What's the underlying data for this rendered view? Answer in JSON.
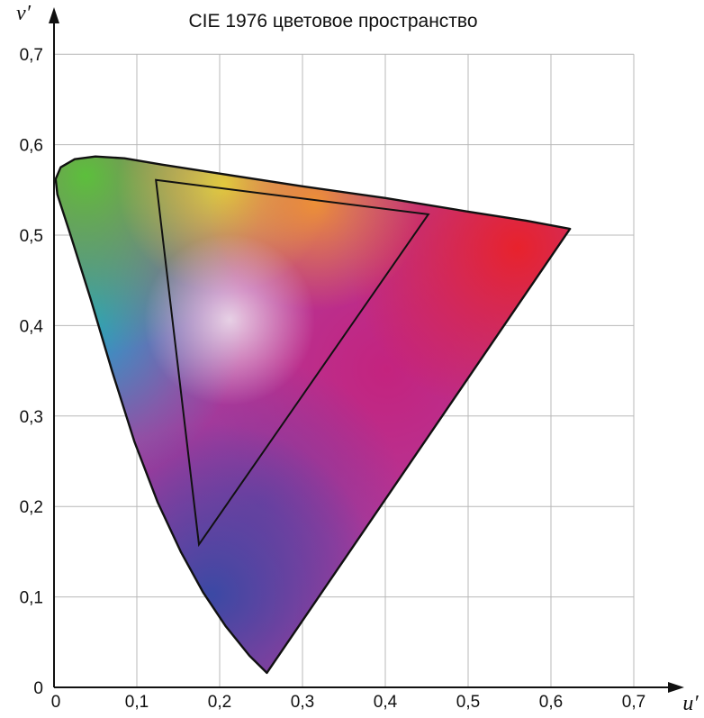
{
  "chart_data": {
    "type": "scatter",
    "title": "CIE 1976 цветовое пространство",
    "xlabel": "u′",
    "ylabel": "v′",
    "xlim": [
      0,
      0.7
    ],
    "ylim": [
      0,
      0.7
    ],
    "x_ticks": [
      {
        "value": 0,
        "label": "0"
      },
      {
        "value": 0.1,
        "label": "0,1"
      },
      {
        "value": 0.2,
        "label": "0,2"
      },
      {
        "value": 0.3,
        "label": "0,3"
      },
      {
        "value": 0.4,
        "label": "0,4"
      },
      {
        "value": 0.5,
        "label": "0,5"
      },
      {
        "value": 0.6,
        "label": "0,6"
      },
      {
        "value": 0.7,
        "label": "0,7"
      }
    ],
    "y_ticks": [
      {
        "value": 0,
        "label": "0"
      },
      {
        "value": 0.1,
        "label": "0,1"
      },
      {
        "value": 0.2,
        "label": "0,2"
      },
      {
        "value": 0.3,
        "label": "0,3"
      },
      {
        "value": 0.4,
        "label": "0,4"
      },
      {
        "value": 0.5,
        "label": "0,5"
      },
      {
        "value": 0.6,
        "label": "0,6"
      },
      {
        "value": 0.7,
        "label": "0,7"
      }
    ],
    "grid": true,
    "series": [
      {
        "kind": "spectral-locus",
        "points": [
          [
            0.257,
            0.016
          ],
          [
            0.236,
            0.035
          ],
          [
            0.207,
            0.068
          ],
          [
            0.18,
            0.105
          ],
          [
            0.153,
            0.15
          ],
          [
            0.125,
            0.205
          ],
          [
            0.097,
            0.272
          ],
          [
            0.07,
            0.35
          ],
          [
            0.044,
            0.43
          ],
          [
            0.02,
            0.5
          ],
          [
            0.004,
            0.545
          ],
          [
            0.002,
            0.562
          ],
          [
            0.008,
            0.575
          ],
          [
            0.025,
            0.584
          ],
          [
            0.05,
            0.587
          ],
          [
            0.085,
            0.585
          ],
          [
            0.13,
            0.578
          ],
          [
            0.2,
            0.568
          ],
          [
            0.3,
            0.554
          ],
          [
            0.4,
            0.541
          ],
          [
            0.5,
            0.526
          ],
          [
            0.57,
            0.516
          ],
          [
            0.623,
            0.507
          ]
        ],
        "colors": {
          "green": "#5cbf3c",
          "cyan": "#1ea5cc",
          "blue": "#3b49a4",
          "violet": "#7b3c9e",
          "magenta": "#c4237e",
          "red": "#e8222c",
          "yellow": "#e2d83c",
          "orange": "#ef9332",
          "white": "#f2eaf2"
        }
      },
      {
        "kind": "gamut-triangle",
        "points": [
          [
            0.123,
            0.561
          ],
          [
            0.452,
            0.523
          ],
          [
            0.175,
            0.158
          ]
        ]
      }
    ],
    "colors": {
      "axis": "#111111",
      "grid": "#b8b8b8",
      "outline": "#111111"
    }
  }
}
